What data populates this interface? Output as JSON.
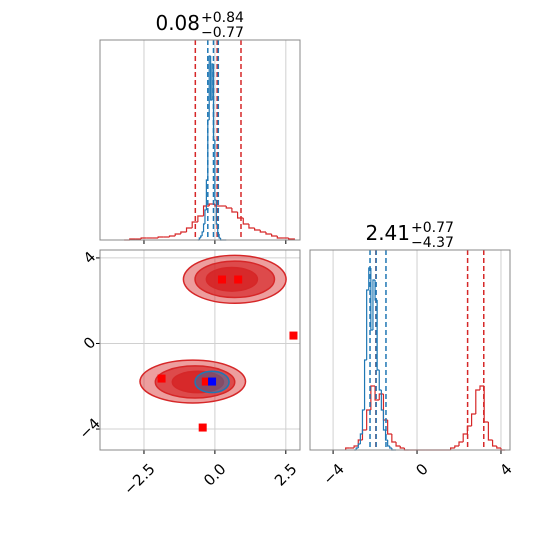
{
  "chart_data": [
    {
      "type": "histogram",
      "title": "0.08",
      "title_sup": "+0.84",
      "title_sub": "−0.77",
      "xlim": [
        -4.05,
        3.0
      ],
      "ylim": [
        0,
        100
      ],
      "xticks": [
        -2.5,
        0,
        2.5
      ],
      "show_xtick_labels": false,
      "grid": true,
      "series": [
        {
          "color": "#d62728",
          "bins": [
            -3.2,
            -3.0,
            -2.8,
            -2.6,
            -2.4,
            -2.2,
            -2.0,
            -1.8,
            -1.6,
            -1.4,
            -1.2,
            -1.0,
            -0.8,
            -0.6,
            -0.4,
            -0.2,
            0.0,
            0.2,
            0.4,
            0.6,
            0.8,
            1.0,
            1.2,
            1.4,
            1.6,
            1.8,
            2.0,
            2.2,
            2.4,
            2.6,
            2.8
          ],
          "counts": [
            0,
            0.5,
            0.5,
            1,
            1,
            1,
            1.5,
            1.5,
            2,
            3,
            4,
            6,
            9,
            12,
            17,
            18,
            17,
            17,
            16,
            14,
            11,
            8,
            6,
            5,
            4,
            3,
            2,
            1,
            1,
            0.5
          ],
          "quantiles": [
            -0.69,
            0.08,
            0.92
          ]
        },
        {
          "color": "#1f77b4",
          "bins": [
            -0.6,
            -0.55,
            -0.5,
            -0.45,
            -0.4,
            -0.35,
            -0.3,
            -0.25,
            -0.2,
            -0.15,
            -0.1,
            -0.05,
            0.0,
            0.05,
            0.1,
            0.15,
            0.2,
            0.25,
            0.3,
            0.35,
            0.4
          ],
          "counts": [
            0,
            1,
            2,
            4,
            8,
            15,
            30,
            60,
            92,
            70,
            88,
            50,
            20,
            8,
            3,
            1,
            0,
            0,
            0,
            0
          ],
          "quantiles": [
            -0.25,
            -0.05,
            0.12
          ]
        }
      ]
    },
    {
      "type": "scatter",
      "xlim": [
        -4.05,
        3.0
      ],
      "ylim": [
        -4.98,
        4.37
      ],
      "xticks": [
        {
          "value": -2.5,
          "label": "−2.5"
        },
        {
          "value": 0,
          "label": "0.0"
        },
        2.5
      ],
      "yticks": [
        {
          "value": -4,
          "label": "−4"
        },
        0,
        4
      ],
      "grid": true,
      "contours": [
        {
          "color": "#d62728",
          "levels": [
            {
              "cx": 0.7,
              "cy": 3.0,
              "rx": 1.81,
              "ry": 1.12
            },
            {
              "cx": 0.7,
              "cy": 3.0,
              "rx": 1.4,
              "ry": 0.85
            },
            {
              "cx": 0.6,
              "cy": 3.0,
              "rx": 0.9,
              "ry": 0.55
            },
            {
              "cx": -0.78,
              "cy": -1.78,
              "rx": 1.86,
              "ry": 1.0
            },
            {
              "cx": -0.7,
              "cy": -1.8,
              "rx": 1.4,
              "ry": 0.75
            },
            {
              "cx": -0.6,
              "cy": -1.8,
              "rx": 0.9,
              "ry": 0.5
            }
          ]
        },
        {
          "color": "#1f77b4",
          "levels": [
            {
              "cx": -0.1,
              "cy": -1.8,
              "rx": 0.6,
              "ry": 0.5
            }
          ]
        }
      ],
      "series": [
        {
          "color": "#ff0000",
          "x": [
            -1.88,
            0.25,
            0.82,
            2.77,
            -0.43,
            -0.32
          ],
          "y": [
            -1.64,
            2.99,
            2.99,
            0.37,
            -3.93,
            -1.78
          ]
        },
        {
          "color": "#0000ff",
          "x": [
            -0.1
          ],
          "y": [
            -1.78
          ]
        }
      ]
    },
    {
      "type": "histogram",
      "title": "2.41",
      "title_sup": "+0.77",
      "title_sub": "−4.37",
      "xlim": [
        -5.1,
        4.43
      ],
      "ylim": [
        0,
        100
      ],
      "xticks": [
        {
          "value": -4,
          "label": "−4"
        },
        0,
        4
      ],
      "show_xtick_labels": true,
      "grid": true,
      "series": [
        {
          "color": "#d62728",
          "bins": [
            -3.4,
            -3.2,
            -3.0,
            -2.8,
            -2.6,
            -2.4,
            -2.2,
            -2.0,
            -1.8,
            -1.6,
            -1.4,
            -1.2,
            -1.0,
            -0.8,
            -0.6,
            -0.4,
            -0.2,
            0.0,
            0.2,
            0.4,
            0.6,
            0.8,
            1.0,
            1.2,
            1.4,
            1.6,
            1.8,
            2.0,
            2.2,
            2.4,
            2.6,
            2.8,
            3.0,
            3.2,
            3.4,
            3.6,
            3.8,
            4.0,
            4.2
          ],
          "counts": [
            1,
            1,
            2,
            5,
            10,
            20,
            32,
            25,
            28,
            15,
            8,
            4,
            2,
            1,
            0,
            0,
            0,
            0,
            0,
            0,
            0,
            0,
            0,
            0,
            0,
            1,
            2,
            4,
            8,
            12,
            18,
            30,
            32,
            14,
            5,
            2,
            1,
            0
          ],
          "quantiles": [
            -1.96,
            2.41,
            3.18
          ]
        },
        {
          "color": "#1f77b4",
          "bins": [
            -3.0,
            -2.9,
            -2.8,
            -2.7,
            -2.6,
            -2.5,
            -2.4,
            -2.3,
            -2.2,
            -2.1,
            -2.0,
            -1.9,
            -1.8,
            -1.7,
            -1.6,
            -1.5,
            -1.4,
            -1.3,
            -1.2,
            -1.1,
            -1.0
          ],
          "counts": [
            0,
            1,
            3,
            8,
            20,
            45,
            80,
            91,
            60,
            85,
            75,
            40,
            30,
            20,
            10,
            5,
            2,
            1,
            0,
            0
          ],
          "quantiles": [
            -2.24,
            -1.95,
            -1.48
          ]
        }
      ]
    }
  ]
}
